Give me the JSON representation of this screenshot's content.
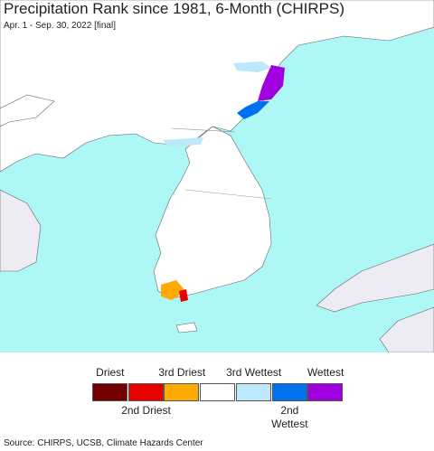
{
  "header": {
    "title": "Precipitation Rank since 1981, 6-Month (CHIRPS)",
    "subtitle": "Apr. 1 - Sep. 30, 2022 [final]"
  },
  "legend": {
    "items": [
      {
        "label": "Driest",
        "color": "#730000"
      },
      {
        "label": "2nd Driest",
        "color": "#e60000"
      },
      {
        "label": "3rd Driest",
        "color": "#ffaa00"
      },
      {
        "color": "#ffffff"
      },
      {
        "label": "3rd Wettest",
        "color": "#bde8fb"
      },
      {
        "label": "2nd Wettest",
        "color": "#0072f0"
      },
      {
        "label": "Wettest",
        "color": "#a000e0"
      }
    ]
  },
  "source": "Source: CHIRPS, UCSB, Climate Hazards Center"
}
